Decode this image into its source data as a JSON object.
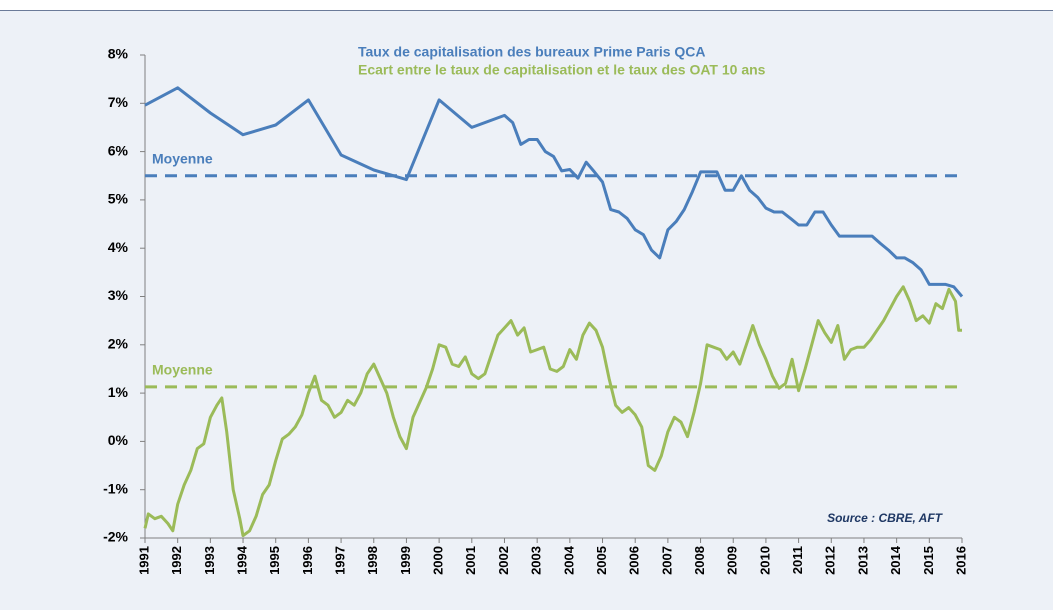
{
  "chart_data": {
    "type": "line",
    "legend": [
      "Taux de capitalisation des bureaux Prime Paris QCA",
      "Ecart entre le taux de capitalisation et le taux des OAT 10 ans"
    ],
    "source": "Source : CBRE, AFT",
    "series": [
      {
        "name": "Taux de capitalisation des bureaux Prime Paris QCA",
        "color": "#4a7ebb",
        "x": [
          1991,
          1992,
          1993,
          1994,
          1995,
          1996,
          1997,
          1998,
          1999,
          2000,
          2001,
          2002,
          2002.25,
          2002.5,
          2002.75,
          2003,
          2003.25,
          2003.5,
          2003.75,
          2004,
          2004.25,
          2004.5,
          2004.75,
          2005,
          2005.25,
          2005.5,
          2005.75,
          2006,
          2006.25,
          2006.5,
          2006.75,
          2007,
          2007.25,
          2007.5,
          2007.75,
          2008,
          2008.5,
          2008.75,
          2009,
          2009.25,
          2009.5,
          2009.75,
          2010,
          2010.25,
          2010.5,
          2010.75,
          2011,
          2011.25,
          2011.5,
          2011.75,
          2012,
          2012.25,
          2013,
          2013.25,
          2013.5,
          2013.75,
          2014,
          2014.25,
          2014.5,
          2014.75,
          2015,
          2015.5,
          2015.75,
          2016
        ],
        "values": [
          6.96,
          7.32,
          6.8,
          6.35,
          6.55,
          7.07,
          5.93,
          5.62,
          5.42,
          7.07,
          6.5,
          6.75,
          6.6,
          6.15,
          6.25,
          6.25,
          6.0,
          5.9,
          5.6,
          5.63,
          5.45,
          5.78,
          5.58,
          5.37,
          4.8,
          4.75,
          4.62,
          4.38,
          4.28,
          3.96,
          3.8,
          4.38,
          4.55,
          4.8,
          5.17,
          5.58,
          5.58,
          5.2,
          5.2,
          5.5,
          5.2,
          5.05,
          4.83,
          4.75,
          4.75,
          4.62,
          4.48,
          4.48,
          4.75,
          4.75,
          4.48,
          4.25,
          4.25,
          4.25,
          4.1,
          3.96,
          3.8,
          3.8,
          3.7,
          3.55,
          3.25,
          3.25,
          3.2,
          3.0
        ]
      },
      {
        "name": "Ecart entre le taux de capitalisation et le taux des OAT 10 ans",
        "color": "#9bbb59",
        "x": [
          1991,
          1991.1,
          1991.3,
          1991.5,
          1991.7,
          1991.85,
          1992,
          1992.2,
          1992.4,
          1992.6,
          1992.8,
          1993,
          1993.2,
          1993.35,
          1993.5,
          1993.7,
          1993.9,
          1994,
          1994.2,
          1994.4,
          1994.6,
          1994.8,
          1995,
          1995.2,
          1995.4,
          1995.6,
          1995.8,
          1996,
          1996.2,
          1996.4,
          1996.6,
          1996.8,
          1997,
          1997.2,
          1997.4,
          1997.6,
          1997.8,
          1998,
          1998.2,
          1998.4,
          1998.6,
          1998.8,
          1999,
          1999.2,
          1999.4,
          1999.6,
          1999.8,
          2000,
          2000.2,
          2000.4,
          2000.6,
          2000.8,
          2001,
          2001.2,
          2001.4,
          2001.6,
          2001.8,
          2002,
          2002.2,
          2002.4,
          2002.6,
          2002.8,
          2003,
          2003.2,
          2003.4,
          2003.6,
          2003.8,
          2004,
          2004.2,
          2004.4,
          2004.6,
          2004.8,
          2005,
          2005.2,
          2005.4,
          2005.6,
          2005.8,
          2006,
          2006.2,
          2006.4,
          2006.6,
          2006.8,
          2007,
          2007.2,
          2007.4,
          2007.6,
          2007.8,
          2008,
          2008.2,
          2008.4,
          2008.6,
          2008.8,
          2009,
          2009.2,
          2009.4,
          2009.6,
          2009.8,
          2010,
          2010.2,
          2010.4,
          2010.6,
          2010.8,
          2011,
          2011.2,
          2011.4,
          2011.6,
          2011.8,
          2012,
          2012.2,
          2012.4,
          2012.6,
          2012.8,
          2013,
          2013.2,
          2013.4,
          2013.6,
          2013.8,
          2014,
          2014.2,
          2014.4,
          2014.6,
          2014.8,
          2015,
          2015.2,
          2015.4,
          2015.6,
          2015.8,
          2015.9,
          2016
        ],
        "values": [
          -1.8,
          -1.5,
          -1.6,
          -1.55,
          -1.7,
          -1.85,
          -1.3,
          -0.9,
          -0.6,
          -0.15,
          -0.05,
          0.5,
          0.75,
          0.9,
          0.2,
          -1.0,
          -1.6,
          -1.95,
          -1.85,
          -1.55,
          -1.1,
          -0.9,
          -0.4,
          0.05,
          0.15,
          0.3,
          0.55,
          1.0,
          1.35,
          0.85,
          0.75,
          0.5,
          0.6,
          0.85,
          0.75,
          1.0,
          1.4,
          1.6,
          1.3,
          1.0,
          0.5,
          0.1,
          -0.15,
          0.5,
          0.8,
          1.1,
          1.5,
          2.0,
          1.95,
          1.6,
          1.55,
          1.75,
          1.4,
          1.3,
          1.4,
          1.8,
          2.2,
          2.35,
          2.5,
          2.2,
          2.35,
          1.85,
          1.9,
          1.95,
          1.5,
          1.45,
          1.55,
          1.9,
          1.7,
          2.2,
          2.45,
          2.3,
          1.95,
          1.3,
          0.75,
          0.6,
          0.7,
          0.55,
          0.3,
          -0.5,
          -0.6,
          -0.3,
          0.2,
          0.5,
          0.4,
          0.1,
          0.6,
          1.2,
          2.0,
          1.95,
          1.9,
          1.7,
          1.85,
          1.6,
          2.0,
          2.4,
          2.0,
          1.7,
          1.35,
          1.1,
          1.2,
          1.7,
          1.05,
          1.5,
          2.0,
          2.5,
          2.25,
          2.05,
          2.4,
          1.7,
          1.9,
          1.95,
          1.95,
          2.1,
          2.3,
          2.5,
          2.75,
          3.0,
          3.2,
          2.9,
          2.5,
          2.6,
          2.45,
          2.85,
          2.75,
          3.15,
          2.9,
          2.3,
          2.3
        ]
      }
    ],
    "averages": [
      {
        "label": "Moyenne",
        "value": 5.5,
        "color": "#4a7ebb"
      },
      {
        "label": "Moyenne",
        "value": 1.13,
        "color": "#9bbb59"
      }
    ],
    "xlim": [
      1991,
      2016
    ],
    "xticks": [
      1991,
      1992,
      1993,
      1994,
      1995,
      1996,
      1997,
      1998,
      1999,
      2000,
      2001,
      2002,
      2003,
      2004,
      2005,
      2006,
      2007,
      2008,
      2009,
      2010,
      2011,
      2012,
      2013,
      2014,
      2015,
      2016
    ],
    "ylim": [
      -2,
      8
    ],
    "yticks": [
      {
        "value": -2,
        "label": "-2%"
      },
      {
        "value": -1,
        "label": "-1%"
      },
      {
        "value": 0,
        "label": "0%"
      },
      {
        "value": 1,
        "label": "1%"
      },
      {
        "value": 2,
        "label": "2%"
      },
      {
        "value": 3,
        "label": "3%"
      },
      {
        "value": 4,
        "label": "4%"
      },
      {
        "value": 5,
        "label": "5%"
      },
      {
        "value": 6,
        "label": "6%"
      },
      {
        "value": 7,
        "label": "7%"
      },
      {
        "value": 8,
        "label": "8%"
      }
    ]
  }
}
